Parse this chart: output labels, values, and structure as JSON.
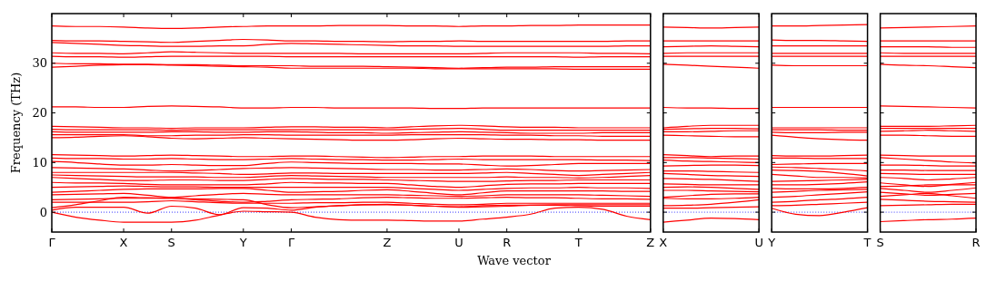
{
  "chart_data": [
    {
      "type": "line",
      "ylabel": "Frequency (THz)",
      "xlabel": "Wave vector",
      "categories": [
        "Γ",
        null,
        null,
        "X",
        null,
        "S",
        null,
        null,
        "Y",
        null,
        "Γ",
        null,
        null,
        null,
        "Z",
        null,
        null,
        "U",
        null,
        "R",
        null,
        null,
        "T",
        null,
        null,
        "Z"
      ],
      "ylim": [
        -4,
        40
      ],
      "yticks": [
        0,
        10,
        20,
        30
      ],
      "ref_lines": [
        {
          "axis": "y",
          "value": 0,
          "color": "#0000ff",
          "line_style": "dotted"
        }
      ],
      "series": [
        {
          "color": "#ff0000",
          "values": [
            37.5,
            37.4,
            37.4,
            37.3,
            37.1,
            37.0,
            37.1,
            37.3,
            37.4,
            37.5,
            37.5,
            37.5,
            37.6,
            37.6,
            37.6,
            37.5,
            37.5,
            37.4,
            37.5,
            37.5,
            37.6,
            37.6,
            37.7,
            37.7,
            37.7,
            37.7
          ]
        },
        {
          "color": "#ff0000",
          "values": [
            34.6,
            34.5,
            34.5,
            34.4,
            34.3,
            34.2,
            34.4,
            34.6,
            34.8,
            34.7,
            34.5,
            34.5,
            34.4,
            34.4,
            34.3,
            34.4,
            34.4,
            34.5,
            34.4,
            34.4,
            34.4,
            34.4,
            34.4,
            34.4,
            34.5,
            34.5
          ]
        },
        {
          "color": "#ff0000",
          "values": [
            34.2,
            34.0,
            33.8,
            33.6,
            33.5,
            33.4,
            33.4,
            33.5,
            33.5,
            33.8,
            34.0,
            33.9,
            33.8,
            33.7,
            33.6,
            33.5,
            33.5,
            33.4,
            33.4,
            33.4,
            33.4,
            33.4,
            33.4,
            33.4,
            33.5,
            33.5
          ]
        },
        {
          "color": "#ff0000",
          "values": [
            32.1,
            32.0,
            32.0,
            31.9,
            32.1,
            32.3,
            32.2,
            32.1,
            32.0,
            32.0,
            32.0,
            32.0,
            32.0,
            31.9,
            31.9,
            31.9,
            31.9,
            31.9,
            32.0,
            32.1,
            32.1,
            32.1,
            32.1,
            32.0,
            32.0,
            31.9
          ]
        },
        {
          "color": "#ff0000",
          "values": [
            31.4,
            31.3,
            31.3,
            31.2,
            31.3,
            31.4,
            31.4,
            31.4,
            31.4,
            31.4,
            31.3,
            31.3,
            31.3,
            31.3,
            31.3,
            31.3,
            31.3,
            31.3,
            31.3,
            31.3,
            31.3,
            31.3,
            31.2,
            31.3,
            31.3,
            31.3
          ]
        },
        {
          "color": "#ff0000",
          "values": [
            30.0,
            29.9,
            29.9,
            29.8,
            29.8,
            29.7,
            29.7,
            29.6,
            29.5,
            29.5,
            29.5,
            29.4,
            29.4,
            29.4,
            29.3,
            29.2,
            29.1,
            29.0,
            29.1,
            29.2,
            29.2,
            29.3,
            29.3,
            29.3,
            29.3,
            29.3
          ]
        },
        {
          "color": "#ff0000",
          "values": [
            29.2,
            29.4,
            29.6,
            29.7,
            29.7,
            29.6,
            29.5,
            29.4,
            29.3,
            29.2,
            29.0,
            29.0,
            29.0,
            29.0,
            29.0,
            29.0,
            28.9,
            28.9,
            28.9,
            28.9,
            28.9,
            28.9,
            28.8,
            28.8,
            28.8,
            28.8
          ]
        },
        {
          "color": "#ff0000",
          "values": [
            21.2,
            21.2,
            21.1,
            21.1,
            21.3,
            21.4,
            21.3,
            21.2,
            21.0,
            21.0,
            21.1,
            21.1,
            21.0,
            21.0,
            21.0,
            21.0,
            20.9,
            20.9,
            21.0,
            21.0,
            21.0,
            21.0,
            21.0,
            21.0,
            21.0,
            21.0
          ]
        },
        {
          "color": "#ff0000",
          "values": [
            17.3,
            17.2,
            17.1,
            17.0,
            17.0,
            16.9,
            17.0,
            17.0,
            17.0,
            17.1,
            17.2,
            17.2,
            17.1,
            17.1,
            17.0,
            17.2,
            17.4,
            17.5,
            17.4,
            17.2,
            17.1,
            17.1,
            17.0,
            17.0,
            17.0,
            17.0
          ]
        },
        {
          "color": "#ff0000",
          "values": [
            16.7,
            16.6,
            16.6,
            16.6,
            16.6,
            16.5,
            16.6,
            16.6,
            16.6,
            16.6,
            16.6,
            16.6,
            16.6,
            16.6,
            16.6,
            16.7,
            16.8,
            16.9,
            16.7,
            16.5,
            16.5,
            16.5,
            16.5,
            16.5,
            16.5,
            16.5
          ]
        },
        {
          "color": "#ff0000",
          "values": [
            16.2,
            16.1,
            16.1,
            16.1,
            16.1,
            16.2,
            16.2,
            16.1,
            16.1,
            16.2,
            16.2,
            16.1,
            16.0,
            16.0,
            15.9,
            16.0,
            16.1,
            16.2,
            16.1,
            16.0,
            15.9,
            15.9,
            15.9,
            16.0,
            16.0,
            16.0
          ]
        },
        {
          "color": "#ff0000",
          "values": [
            15.6,
            15.6,
            15.6,
            15.6,
            15.4,
            15.4,
            15.5,
            15.5,
            15.6,
            15.6,
            15.5,
            15.5,
            15.5,
            15.5,
            15.5,
            15.6,
            15.6,
            15.6,
            15.6,
            15.5,
            15.5,
            15.4,
            15.4,
            15.3,
            15.3,
            15.3
          ]
        },
        {
          "color": "#ff0000",
          "values": [
            15.0,
            15.1,
            15.3,
            15.4,
            15.2,
            14.9,
            14.8,
            14.9,
            15.0,
            14.9,
            14.8,
            14.7,
            14.6,
            14.5,
            14.5,
            14.6,
            14.8,
            14.9,
            14.8,
            14.7,
            14.7,
            14.6,
            14.6,
            14.5,
            14.5,
            14.5
          ]
        },
        {
          "color": "#ff0000",
          "values": [
            11.6,
            11.5,
            11.4,
            11.3,
            11.4,
            11.5,
            11.4,
            11.3,
            11.2,
            11.2,
            11.3,
            11.3,
            11.2,
            11.1,
            11.0,
            11.1,
            11.2,
            11.2,
            11.3,
            11.3,
            11.3,
            11.2,
            11.2,
            11.2,
            11.2,
            11.2
          ]
        },
        {
          "color": "#ff0000",
          "values": [
            10.9,
            10.8,
            10.8,
            10.7,
            10.7,
            10.8,
            10.7,
            10.6,
            10.6,
            10.7,
            10.8,
            10.7,
            10.6,
            10.6,
            10.5,
            10.5,
            10.6,
            10.7,
            10.6,
            10.6,
            10.6,
            10.6,
            10.6,
            10.5,
            10.5,
            10.4
          ]
        },
        {
          "color": "#ff0000",
          "values": [
            10.2,
            10.0,
            9.7,
            9.5,
            9.5,
            9.6,
            9.5,
            9.4,
            9.4,
            9.8,
            10.1,
            10.0,
            9.9,
            9.8,
            9.8,
            9.8,
            9.7,
            9.7,
            9.5,
            9.3,
            9.4,
            9.6,
            9.8,
            9.8,
            9.8,
            9.8
          ]
        },
        {
          "color": "#ff0000",
          "values": [
            9.0,
            8.9,
            8.8,
            8.7,
            8.5,
            8.3,
            8.4,
            8.6,
            8.8,
            8.9,
            9.0,
            8.9,
            8.8,
            8.7,
            8.6,
            8.6,
            8.5,
            8.5,
            8.6,
            8.7,
            8.6,
            8.4,
            8.3,
            8.4,
            8.5,
            8.6
          ]
        },
        {
          "color": "#ff0000",
          "values": [
            8.0,
            8.0,
            8.0,
            8.0,
            8.0,
            8.0,
            7.9,
            7.8,
            7.6,
            7.7,
            7.9,
            7.9,
            7.8,
            7.8,
            7.8,
            7.8,
            7.8,
            7.8,
            7.9,
            8.0,
            7.8,
            7.6,
            7.4,
            7.6,
            7.8,
            8.0
          ]
        },
        {
          "color": "#ff0000",
          "values": [
            7.5,
            7.4,
            7.3,
            7.2,
            7.1,
            7.1,
            7.1,
            7.0,
            7.0,
            7.2,
            7.4,
            7.3,
            7.2,
            7.1,
            7.0,
            7.0,
            7.0,
            7.0,
            7.0,
            7.1,
            7.0,
            7.0,
            6.9,
            7.0,
            7.2,
            7.4
          ]
        },
        {
          "color": "#ff0000",
          "values": [
            7.0,
            6.8,
            6.6,
            6.4,
            6.4,
            6.5,
            6.5,
            6.4,
            6.4,
            6.6,
            6.8,
            6.7,
            6.6,
            6.6,
            6.5,
            6.4,
            6.3,
            6.2,
            6.2,
            6.3,
            6.4,
            6.4,
            6.5,
            6.5,
            6.5,
            6.5
          ]
        },
        {
          "color": "#ff0000",
          "values": [
            6.0,
            5.9,
            5.9,
            5.8,
            5.6,
            5.5,
            5.5,
            5.5,
            5.5,
            5.7,
            6.0,
            5.9,
            5.9,
            5.8,
            5.8,
            5.5,
            5.2,
            5.0,
            5.3,
            5.6,
            5.7,
            5.7,
            5.8,
            5.8,
            5.8,
            5.8
          ]
        },
        {
          "color": "#ff0000",
          "values": [
            5.0,
            5.1,
            5.2,
            5.3,
            5.2,
            5.1,
            5.1,
            5.0,
            5.0,
            5.0,
            5.0,
            5.0,
            5.0,
            5.0,
            5.0,
            4.8,
            4.6,
            4.4,
            4.6,
            4.8,
            4.9,
            4.9,
            5.0,
            4.9,
            4.9,
            4.8
          ]
        },
        {
          "color": "#ff0000",
          "values": [
            4.0,
            4.2,
            4.4,
            4.6,
            4.7,
            4.7,
            4.7,
            4.8,
            4.8,
            4.4,
            4.0,
            4.1,
            4.2,
            4.4,
            4.5,
            4.2,
            3.8,
            3.5,
            3.9,
            4.3,
            4.3,
            4.3,
            4.3,
            4.3,
            4.2,
            4.2
          ]
        },
        {
          "color": "#ff0000",
          "values": [
            3.5,
            3.6,
            3.7,
            3.8,
            3.4,
            3.0,
            3.3,
            3.6,
            3.8,
            3.6,
            3.5,
            3.5,
            3.5,
            3.5,
            3.5,
            3.4,
            3.3,
            3.2,
            3.3,
            3.5,
            3.5,
            3.5,
            3.5,
            3.4,
            3.3,
            3.2
          ]
        },
        {
          "color": "#ff0000",
          "values": [
            2.5,
            2.6,
            2.7,
            2.8,
            2.8,
            2.8,
            2.5,
            2.2,
            2.0,
            2.2,
            2.5,
            2.6,
            2.7,
            2.9,
            3.0,
            2.9,
            2.8,
            2.8,
            2.9,
            3.0,
            2.9,
            2.9,
            2.8,
            2.7,
            2.7,
            2.6
          ]
        },
        {
          "color": "#ff0000",
          "values": [
            2.0,
            2.0,
            2.0,
            2.0,
            2.1,
            2.3,
            2.1,
            1.9,
            1.8,
            1.8,
            1.8,
            1.9,
            1.9,
            2.0,
            2.0,
            1.8,
            1.6,
            1.5,
            1.6,
            1.8,
            1.8,
            1.8,
            1.8,
            1.8,
            1.8,
            1.8
          ]
        },
        {
          "color": "#ff0000",
          "values": [
            0.9,
            1.5,
            2.3,
            3.0,
            2.9,
            2.8,
            2.7,
            2.6,
            2.5,
            1.5,
            0.9,
            1.1,
            1.3,
            1.5,
            1.6,
            1.4,
            1.2,
            1.1,
            1.3,
            1.4,
            1.4,
            1.4,
            1.3,
            1.2,
            1.2,
            1.2
          ]
        },
        {
          "color": "#ff0000",
          "values": [
            0.4,
            1.0,
            1.0,
            1.0,
            -0.2,
            1.2,
            0.8,
            -0.5,
            0.9,
            0.8,
            0.4,
            1.0,
            1.3,
            1.5,
            1.5,
            1.4,
            1.2,
            1.0,
            1.1,
            1.2,
            1.4,
            1.5,
            1.5,
            1.5,
            1.5,
            1.5
          ]
        },
        {
          "color": "#ff0000",
          "values": [
            0,
            -1.0,
            -1.6,
            -2.0,
            -2.0,
            -2.0,
            -1.6,
            -0.6,
            0.2,
            0.1,
            0,
            -1.0,
            -1.5,
            -1.6,
            -1.6,
            -1.7,
            -1.8,
            -1.8,
            -1.4,
            -1.0,
            -0.4,
            0.8,
            1.0,
            0.6,
            -0.8,
            -1.5
          ]
        }
      ]
    },
    {
      "type": "line",
      "categories": [
        "X",
        null,
        null,
        null,
        "U"
      ],
      "ylim": [
        -4,
        40
      ],
      "yticks": [
        0,
        10,
        20,
        30
      ],
      "tick_labels": "x",
      "ref_lines": [
        {
          "axis": "y",
          "value": 0,
          "color": "#0000ff",
          "line_style": "dotted"
        }
      ],
      "series": [
        {
          "color": "#ff0000",
          "values": [
            37.3,
            37.2,
            37.1,
            37.2,
            37.3
          ]
        },
        {
          "color": "#ff0000",
          "values": [
            34.5,
            34.5,
            34.5,
            34.5,
            34.5
          ]
        },
        {
          "color": "#ff0000",
          "values": [
            33.3,
            33.4,
            33.5,
            33.4,
            33.3
          ]
        },
        {
          "color": "#ff0000",
          "values": [
            32.0,
            32.1,
            32.1,
            32.1,
            32.1
          ]
        },
        {
          "color": "#ff0000",
          "values": [
            31.4,
            31.4,
            31.4,
            31.4,
            31.4
          ]
        },
        {
          "color": "#ff0000",
          "values": [
            29.8,
            29.6,
            29.4,
            29.2,
            29.0
          ]
        },
        {
          "color": "#ff0000",
          "values": [
            21.1,
            21.0,
            21.0,
            20.9,
            20.9
          ]
        },
        {
          "color": "#ff0000",
          "values": [
            17.0,
            17.3,
            17.5,
            17.5,
            17.5
          ]
        },
        {
          "color": "#ff0000",
          "values": [
            16.7,
            16.8,
            16.9,
            16.9,
            16.8
          ]
        },
        {
          "color": "#ff0000",
          "values": [
            16.2,
            16.2,
            16.3,
            16.4,
            16.4
          ]
        },
        {
          "color": "#ff0000",
          "values": [
            15.5,
            15.4,
            15.3,
            15.2,
            15.2
          ]
        },
        {
          "color": "#ff0000",
          "values": [
            11.6,
            11.4,
            11.2,
            11.3,
            11.3
          ]
        },
        {
          "color": "#ff0000",
          "values": [
            11.0,
            11.0,
            10.9,
            10.8,
            10.7
          ]
        },
        {
          "color": "#ff0000",
          "values": [
            10.5,
            10.3,
            10.2,
            10.1,
            10.0
          ]
        },
        {
          "color": "#ff0000",
          "values": [
            9.3,
            9.4,
            9.5,
            9.5,
            9.4
          ]
        },
        {
          "color": "#ff0000",
          "values": [
            8.3,
            8.3,
            8.2,
            8.1,
            8.0
          ]
        },
        {
          "color": "#ff0000",
          "values": [
            7.8,
            7.6,
            7.4,
            7.3,
            7.2
          ]
        },
        {
          "color": "#ff0000",
          "values": [
            6.8,
            6.7,
            6.6,
            6.4,
            6.2
          ]
        },
        {
          "color": "#ff0000",
          "values": [
            5.7,
            5.6,
            5.5,
            5.5,
            5.5
          ]
        },
        {
          "color": "#ff0000",
          "values": [
            5.0,
            5.1,
            5.0,
            4.8,
            4.6
          ]
        },
        {
          "color": "#ff0000",
          "values": [
            4.4,
            4.4,
            4.3,
            4.2,
            4.1
          ]
        },
        {
          "color": "#ff0000",
          "values": [
            3.0,
            3.3,
            3.6,
            3.7,
            3.7
          ]
        },
        {
          "color": "#ff0000",
          "values": [
            2.8,
            2.7,
            2.7,
            2.8,
            3.0
          ]
        },
        {
          "color": "#ff0000",
          "values": [
            1.3,
            1.4,
            1.6,
            2.0,
            2.5
          ]
        },
        {
          "color": "#ff0000",
          "values": [
            0.8,
            0.8,
            0.9,
            1.0,
            1.1
          ]
        },
        {
          "color": "#ff0000",
          "values": [
            -2.0,
            -1.6,
            -1.2,
            -1.3,
            -1.5
          ]
        }
      ]
    },
    {
      "type": "line",
      "categories": [
        "Y",
        null,
        null,
        null,
        "T"
      ],
      "ylim": [
        -4,
        40
      ],
      "yticks": [
        0,
        10,
        20,
        30
      ],
      "tick_labels": "x",
      "ref_lines": [
        {
          "axis": "y",
          "value": 0,
          "color": "#0000ff",
          "line_style": "dotted"
        }
      ],
      "series": [
        {
          "color": "#ff0000",
          "values": [
            37.5,
            37.5,
            37.6,
            37.7,
            37.8
          ]
        },
        {
          "color": "#ff0000",
          "values": [
            34.7,
            34.6,
            34.6,
            34.5,
            34.4
          ]
        },
        {
          "color": "#ff0000",
          "values": [
            33.5,
            33.5,
            33.5,
            33.5,
            33.5
          ]
        },
        {
          "color": "#ff0000",
          "values": [
            32.0,
            32.0,
            32.0,
            32.0,
            32.0
          ]
        },
        {
          "color": "#ff0000",
          "values": [
            31.4,
            31.4,
            31.4,
            31.4,
            31.4
          ]
        },
        {
          "color": "#ff0000",
          "values": [
            29.6,
            29.5,
            29.5,
            29.5,
            29.5
          ]
        },
        {
          "color": "#ff0000",
          "values": [
            21.1,
            21.1,
            21.1,
            21.1,
            21.1
          ]
        },
        {
          "color": "#ff0000",
          "values": [
            17.0,
            17.0,
            17.0,
            17.0,
            17.0
          ]
        },
        {
          "color": "#ff0000",
          "values": [
            16.6,
            16.6,
            16.6,
            16.5,
            16.5
          ]
        },
        {
          "color": "#ff0000",
          "values": [
            16.1,
            16.0,
            16.0,
            16.1,
            16.1
          ]
        },
        {
          "color": "#ff0000",
          "values": [
            15.5,
            15.1,
            14.8,
            14.6,
            14.5
          ]
        },
        {
          "color": "#ff0000",
          "values": [
            11.4,
            11.3,
            11.3,
            11.4,
            11.5
          ]
        },
        {
          "color": "#ff0000",
          "values": [
            10.9,
            10.9,
            10.8,
            10.8,
            10.8
          ]
        },
        {
          "color": "#ff0000",
          "values": [
            9.6,
            9.7,
            9.8,
            9.8,
            9.8
          ]
        },
        {
          "color": "#ff0000",
          "values": [
            9.1,
            9.0,
            8.8,
            8.6,
            8.3
          ]
        },
        {
          "color": "#ff0000",
          "values": [
            8.5,
            8.4,
            8.2,
            7.8,
            7.3
          ]
        },
        {
          "color": "#ff0000",
          "values": [
            7.6,
            7.3,
            7.0,
            7.0,
            6.9
          ]
        },
        {
          "color": "#ff0000",
          "values": [
            6.2,
            6.3,
            6.4,
            6.5,
            6.6
          ]
        },
        {
          "color": "#ff0000",
          "values": [
            5.5,
            5.5,
            5.6,
            5.8,
            6.1
          ]
        },
        {
          "color": "#ff0000",
          "values": [
            4.8,
            4.7,
            4.7,
            4.8,
            5.0
          ]
        },
        {
          "color": "#ff0000",
          "values": [
            4.0,
            4.2,
            4.4,
            4.5,
            4.6
          ]
        },
        {
          "color": "#ff0000",
          "values": [
            3.0,
            3.2,
            3.5,
            3.8,
            4.1
          ]
        },
        {
          "color": "#ff0000",
          "values": [
            2.0,
            2.2,
            2.5,
            2.7,
            3.0
          ]
        },
        {
          "color": "#ff0000",
          "values": [
            1.3,
            1.4,
            1.6,
            1.8,
            2.0
          ]
        },
        {
          "color": "#ff0000",
          "values": [
            0.8,
            -0.4,
            -0.7,
            0.0,
            0.9
          ]
        }
      ]
    },
    {
      "type": "line",
      "categories": [
        "S",
        null,
        null,
        null,
        "R"
      ],
      "ylim": [
        -4,
        40
      ],
      "yticks": [
        0,
        10,
        20,
        30
      ],
      "tick_labels": "x",
      "ref_lines": [
        {
          "axis": "y",
          "value": 0,
          "color": "#0000ff",
          "line_style": "dotted"
        }
      ],
      "series": [
        {
          "color": "#ff0000",
          "values": [
            37.1,
            37.2,
            37.3,
            37.4,
            37.5
          ]
        },
        {
          "color": "#ff0000",
          "values": [
            34.5,
            34.5,
            34.5,
            34.5,
            34.5
          ]
        },
        {
          "color": "#ff0000",
          "values": [
            33.3,
            33.3,
            33.3,
            33.2,
            33.2
          ]
        },
        {
          "color": "#ff0000",
          "values": [
            32.1,
            32.0,
            32.0,
            32.0,
            32.0
          ]
        },
        {
          "color": "#ff0000",
          "values": [
            31.4,
            31.4,
            31.4,
            31.4,
            31.4
          ]
        },
        {
          "color": "#ff0000",
          "values": [
            29.8,
            29.6,
            29.5,
            29.3,
            29.1
          ]
        },
        {
          "color": "#ff0000",
          "values": [
            21.4,
            21.3,
            21.2,
            21.1,
            21.0
          ]
        },
        {
          "color": "#ff0000",
          "values": [
            17.3,
            17.3,
            17.3,
            17.4,
            17.5
          ]
        },
        {
          "color": "#ff0000",
          "values": [
            16.9,
            16.9,
            16.9,
            16.9,
            16.9
          ]
        },
        {
          "color": "#ff0000",
          "values": [
            16.3,
            16.4,
            16.5,
            16.4,
            16.3
          ]
        },
        {
          "color": "#ff0000",
          "values": [
            15.5,
            15.5,
            15.4,
            15.3,
            15.3
          ]
        },
        {
          "color": "#ff0000",
          "values": [
            11.5,
            11.4,
            11.3,
            11.3,
            11.3
          ]
        },
        {
          "color": "#ff0000",
          "values": [
            11.0,
            10.7,
            10.4,
            10.1,
            9.9
          ]
        },
        {
          "color": "#ff0000",
          "values": [
            9.5,
            9.5,
            9.4,
            9.3,
            9.3
          ]
        },
        {
          "color": "#ff0000",
          "values": [
            8.5,
            8.5,
            8.4,
            8.4,
            8.4
          ]
        },
        {
          "color": "#ff0000",
          "values": [
            7.8,
            7.7,
            7.6,
            7.6,
            7.6
          ]
        },
        {
          "color": "#ff0000",
          "values": [
            7.0,
            6.8,
            6.5,
            6.7,
            7.0
          ]
        },
        {
          "color": "#ff0000",
          "values": [
            5.9,
            5.5,
            5.2,
            5.6,
            6.0
          ]
        },
        {
          "color": "#ff0000",
          "values": [
            5.2,
            5.3,
            5.5,
            5.5,
            5.5
          ]
        },
        {
          "color": "#ff0000",
          "values": [
            4.8,
            4.4,
            4.0,
            4.4,
            4.9
          ]
        },
        {
          "color": "#ff0000",
          "values": [
            4.0,
            3.7,
            3.4,
            3.6,
            3.8
          ]
        },
        {
          "color": "#ff0000",
          "values": [
            3.2,
            3.5,
            3.8,
            3.3,
            2.8
          ]
        },
        {
          "color": "#ff0000",
          "values": [
            2.6,
            2.4,
            2.2,
            2.1,
            2.0
          ]
        },
        {
          "color": "#ff0000",
          "values": [
            1.3,
            1.4,
            1.5,
            1.6,
            1.6
          ]
        },
        {
          "color": "#ff0000",
          "values": [
            -1.9,
            -1.7,
            -1.5,
            -1.4,
            -1.2
          ]
        }
      ]
    }
  ]
}
